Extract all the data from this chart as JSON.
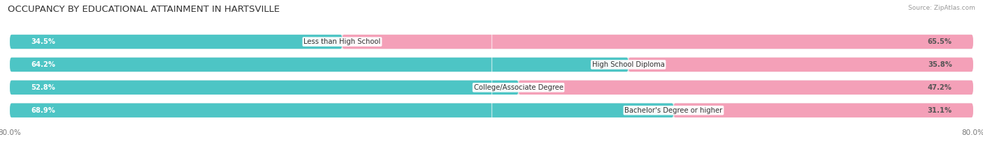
{
  "title": "OCCUPANCY BY EDUCATIONAL ATTAINMENT IN HARTSVILLE",
  "source": "Source: ZipAtlas.com",
  "categories": [
    "Less than High School",
    "High School Diploma",
    "College/Associate Degree",
    "Bachelor's Degree or higher"
  ],
  "owner_pct": [
    34.5,
    64.2,
    52.8,
    68.9
  ],
  "renter_pct": [
    65.5,
    35.8,
    47.2,
    31.1
  ],
  "owner_color": "#4dc5c5",
  "renter_color": "#f4a0b8",
  "bg_color": "#ffffff",
  "bar_bg_color": "#e8e8e8",
  "title_fontsize": 9.5,
  "label_fontsize": 7.2,
  "pct_fontsize": 7.2,
  "source_fontsize": 6.5,
  "axis_label_fontsize": 7.5,
  "xlim_left": -80.0,
  "xlim_right": 80.0
}
